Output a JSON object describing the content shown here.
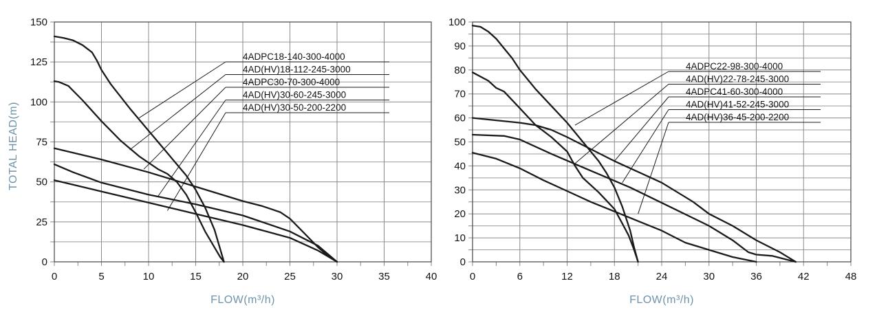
{
  "chart_data": [
    {
      "type": "line",
      "xlabel": "FLOW(m³/h)",
      "ylabel": "TOTAL HEAD(m)",
      "xlim": [
        0,
        40
      ],
      "ylim": [
        0,
        150
      ],
      "xticks": [
        0,
        5,
        10,
        15,
        20,
        25,
        30,
        35,
        40
      ],
      "yticks": [
        0,
        25,
        50,
        75,
        100,
        125,
        150
      ],
      "x_minor_step": 2.5,
      "y_minor_step": 12.5,
      "grid": true,
      "series": [
        {
          "name": "4ADPC18-140-300-4000",
          "points": [
            [
              0,
              141
            ],
            [
              1,
              140
            ],
            [
              2,
              138.5
            ],
            [
              3,
              135.5
            ],
            [
              4,
              131
            ],
            [
              4.5,
              126
            ],
            [
              5,
              120
            ],
            [
              6,
              111
            ],
            [
              8,
              96
            ],
            [
              10,
              82
            ],
            [
              12,
              68
            ],
            [
              14,
              54
            ],
            [
              15,
              45
            ],
            [
              16,
              34
            ],
            [
              17,
              20
            ],
            [
              18,
              0
            ]
          ],
          "leader_anchor": [
            9,
            90
          ]
        },
        {
          "name": "4AD(HV)18-112-245-3000",
          "points": [
            [
              0,
              113
            ],
            [
              0.5,
              112.5
            ],
            [
              1.5,
              110
            ],
            [
              3,
              101
            ],
            [
              5,
              88
            ],
            [
              7,
              76
            ],
            [
              9,
              66
            ],
            [
              11,
              58
            ],
            [
              12,
              55
            ],
            [
              13,
              50
            ],
            [
              14,
              42
            ],
            [
              15,
              31
            ],
            [
              16,
              19
            ],
            [
              17,
              9
            ],
            [
              17.6,
              3
            ],
            [
              18,
              0
            ]
          ],
          "leader_anchor": [
            8,
            70
          ]
        },
        {
          "name": "4ADPC30-70-300-4000",
          "points": [
            [
              0,
              71
            ],
            [
              5,
              64
            ],
            [
              10,
              56
            ],
            [
              15,
              47
            ],
            [
              20,
              38
            ],
            [
              22,
              35
            ],
            [
              23,
              33
            ],
            [
              24,
              31
            ],
            [
              25,
              27
            ],
            [
              26,
              21
            ],
            [
              27,
              15
            ],
            [
              28,
              9
            ],
            [
              29,
              4
            ],
            [
              30,
              0
            ]
          ],
          "leader_anchor": [
            9.5,
            58
          ]
        },
        {
          "name": "4AD(HV)30-60-245-3000",
          "points": [
            [
              0,
              61
            ],
            [
              2,
              56
            ],
            [
              5,
              49.5
            ],
            [
              10,
              42
            ],
            [
              15,
              36
            ],
            [
              20,
              29
            ],
            [
              25,
              19
            ],
            [
              28,
              10
            ],
            [
              30,
              0
            ]
          ],
          "leader_anchor": [
            11,
            41
          ]
        },
        {
          "name": "4AD(HV)30-50-200-2200",
          "points": [
            [
              0,
              51
            ],
            [
              5,
              44
            ],
            [
              10,
              37
            ],
            [
              15,
              30
            ],
            [
              20,
              23
            ],
            [
              25,
              15
            ],
            [
              28,
              7
            ],
            [
              30,
              0
            ]
          ],
          "leader_anchor": [
            12,
            32
          ]
        }
      ]
    },
    {
      "type": "line",
      "xlabel": "FLOW(m³/h)",
      "ylabel": "",
      "xlim": [
        0,
        48
      ],
      "ylim": [
        0,
        100
      ],
      "xticks": [
        0,
        6,
        12,
        18,
        24,
        30,
        36,
        42,
        48
      ],
      "yticks": [
        0,
        10,
        20,
        30,
        40,
        50,
        60,
        70,
        80,
        90,
        100
      ],
      "x_minor_step": 3,
      "y_minor_step": 5,
      "grid": true,
      "series": [
        {
          "name": "4ADPC22-98-300-4000",
          "points": [
            [
              0,
              98.5
            ],
            [
              1,
              98
            ],
            [
              2,
              96
            ],
            [
              3,
              93
            ],
            [
              4,
              89
            ],
            [
              5,
              85
            ],
            [
              6,
              80
            ],
            [
              8,
              72
            ],
            [
              10,
              65
            ],
            [
              12,
              58
            ],
            [
              14,
              50
            ],
            [
              16,
              42
            ],
            [
              17,
              37
            ],
            [
              18,
              31
            ],
            [
              19,
              23
            ],
            [
              20,
              13
            ],
            [
              20.5,
              6
            ],
            [
              21,
              0
            ]
          ],
          "leader_anchor": [
            13,
            57
          ]
        },
        {
          "name": "4AD(HV)22-78-245-3000",
          "points": [
            [
              0,
              79
            ],
            [
              2,
              75.5
            ],
            [
              3,
              72.5
            ],
            [
              4,
              71
            ],
            [
              6,
              64
            ],
            [
              8,
              57
            ],
            [
              10,
              52
            ],
            [
              12,
              46
            ],
            [
              13,
              40
            ],
            [
              14,
              35
            ],
            [
              16,
              29
            ],
            [
              18,
              22
            ],
            [
              19,
              16
            ],
            [
              19.8,
              11
            ],
            [
              20.5,
              5
            ],
            [
              21,
              0
            ]
          ],
          "leader_anchor": [
            13,
            41
          ]
        },
        {
          "name": "4ADPC41-60-300-4000",
          "points": [
            [
              0,
              60
            ],
            [
              6,
              58
            ],
            [
              8,
              57
            ],
            [
              10,
              55
            ],
            [
              12,
              52
            ],
            [
              15,
              47
            ],
            [
              18,
              42
            ],
            [
              24,
              33
            ],
            [
              27,
              27
            ],
            [
              28,
              25
            ],
            [
              30,
              20
            ],
            [
              33,
              15
            ],
            [
              36,
              9
            ],
            [
              39,
              4
            ],
            [
              41,
              0
            ]
          ],
          "leader_anchor": [
            18,
            42
          ]
        },
        {
          "name": "4AD(HV)41-52-245-3000",
          "points": [
            [
              0,
              53
            ],
            [
              4,
              52.5
            ],
            [
              6,
              51
            ],
            [
              10,
              45
            ],
            [
              15,
              38
            ],
            [
              20,
              31
            ],
            [
              25,
              23
            ],
            [
              30,
              15
            ],
            [
              33,
              9
            ],
            [
              35,
              4
            ],
            [
              36,
              3
            ],
            [
              38,
              2.5
            ],
            [
              41,
              0
            ]
          ],
          "leader_anchor": [
            19,
            33
          ]
        },
        {
          "name": "4AD(HV)36-45-200-2200",
          "points": [
            [
              0,
              45.5
            ],
            [
              3,
              43
            ],
            [
              6,
              39
            ],
            [
              9,
              34
            ],
            [
              12,
              29.5
            ],
            [
              15,
              25
            ],
            [
              18,
              21
            ],
            [
              21,
              17
            ],
            [
              24,
              13
            ],
            [
              27,
              8
            ],
            [
              30,
              5
            ],
            [
              33,
              2
            ],
            [
              36,
              0
            ]
          ],
          "leader_anchor": [
            21,
            20
          ]
        }
      ]
    }
  ]
}
